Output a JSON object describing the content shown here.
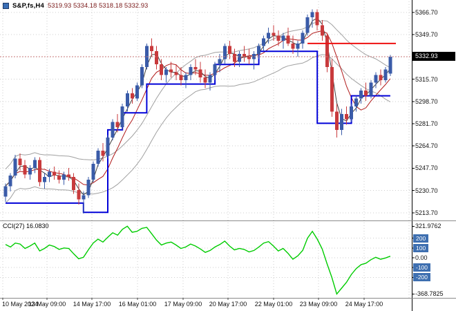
{
  "header": {
    "symbol": "S&P,fs,H4",
    "ohlc": "5319.93 5334.18 5318.18 5332.93"
  },
  "price_axis": {
    "current": "5332.93"
  },
  "colors": {
    "background": "#FFFFFF",
    "grid": "#CDCDCD",
    "bull_candle": "#3A5BA8",
    "bear_candle": "#C83A3C",
    "ma_red": "#B01818",
    "ma_dark": "#404040",
    "envelope": "#A0A0A0",
    "step_line": "#0000D8",
    "resistance_line": "#EE1111",
    "bid_line": "#D08080",
    "cci_line": "#00CC00",
    "level_box": "#3E6FB0",
    "price_tag_bg": "#000000",
    "axis_text": "#111111",
    "icon_blue": "#3A6EB5"
  },
  "chart_data": {
    "type": "candlestick",
    "title": "S&P,fs,H4",
    "timeframe": "H4",
    "ohlc": {
      "open": 5319.93,
      "high": 5334.18,
      "low": 5318.18,
      "close": 5332.93
    },
    "ylim": [
      5208,
      5369
    ],
    "grid_on": true,
    "grid_prices": [
      5366.7,
      5349.7,
      5332.7,
      5315.7,
      5298.7,
      5281.7,
      5264.7,
      5247.7,
      5230.7,
      5213.7
    ],
    "y_ticks": [
      {
        "text": "5366.70",
        "value": 5366.7
      },
      {
        "text": "5349.70",
        "value": 5349.7
      },
      {
        "text": "5315.70",
        "value": 5315.7
      },
      {
        "text": "5298.70",
        "value": 5298.7
      },
      {
        "text": "5281.70",
        "value": 5281.7
      },
      {
        "text": "5264.70",
        "value": 5264.7
      },
      {
        "text": "5247.70",
        "value": 5247.7
      },
      {
        "text": "5230.70",
        "value": 5230.7
      },
      {
        "text": "5213.70",
        "value": 5213.7
      }
    ],
    "x_ticks": [
      "10 May 2024",
      "13 May 09:00",
      "14 May 17:00",
      "16 May 01:00",
      "17 May 09:00",
      "20 May 17:00",
      "22 May 01:00",
      "23 May 09:00",
      "24 May 17:00"
    ],
    "candles": [
      [
        5226,
        5236,
        5222,
        5234
      ],
      [
        5234,
        5244,
        5230,
        5242
      ],
      [
        5242,
        5258,
        5240,
        5255
      ],
      [
        5255,
        5259,
        5246,
        5250
      ],
      [
        5250,
        5254,
        5240,
        5243
      ],
      [
        5243,
        5250,
        5239,
        5248
      ],
      [
        5248,
        5256,
        5244,
        5254
      ],
      [
        5254,
        5256,
        5234,
        5237
      ],
      [
        5237,
        5244,
        5232,
        5241
      ],
      [
        5241,
        5247,
        5237,
        5245
      ],
      [
        5245,
        5249,
        5239,
        5242
      ],
      [
        5242,
        5246,
        5236,
        5239
      ],
      [
        5239,
        5245,
        5235,
        5243
      ],
      [
        5243,
        5248,
        5238,
        5241
      ],
      [
        5241,
        5244,
        5228,
        5231
      ],
      [
        5231,
        5236,
        5220,
        5224
      ],
      [
        5224,
        5230,
        5213,
        5227
      ],
      [
        5227,
        5241,
        5225,
        5239
      ],
      [
        5239,
        5253,
        5237,
        5251
      ],
      [
        5251,
        5263,
        5249,
        5261
      ],
      [
        5261,
        5267,
        5253,
        5257
      ],
      [
        5257,
        5273,
        5255,
        5271
      ],
      [
        5271,
        5285,
        5269,
        5283
      ],
      [
        5283,
        5289,
        5275,
        5279
      ],
      [
        5279,
        5297,
        5277,
        5295
      ],
      [
        5295,
        5307,
        5291,
        5305
      ],
      [
        5305,
        5309,
        5297,
        5301
      ],
      [
        5301,
        5313,
        5299,
        5311
      ],
      [
        5311,
        5327,
        5309,
        5325
      ],
      [
        5325,
        5343,
        5323,
        5341
      ],
      [
        5341,
        5347,
        5333,
        5337
      ],
      [
        5337,
        5341,
        5323,
        5327
      ],
      [
        5327,
        5331,
        5315,
        5319
      ],
      [
        5319,
        5325,
        5313,
        5323
      ],
      [
        5323,
        5329,
        5317,
        5321
      ],
      [
        5321,
        5327,
        5315,
        5319
      ],
      [
        5319,
        5325,
        5311,
        5315
      ],
      [
        5315,
        5321,
        5309,
        5319
      ],
      [
        5319,
        5327,
        5315,
        5325
      ],
      [
        5325,
        5331,
        5319,
        5323
      ],
      [
        5323,
        5329,
        5313,
        5317
      ],
      [
        5317,
        5323,
        5309,
        5313
      ],
      [
        5313,
        5321,
        5307,
        5319
      ],
      [
        5319,
        5329,
        5315,
        5327
      ],
      [
        5327,
        5335,
        5321,
        5331
      ],
      [
        5331,
        5343,
        5327,
        5341
      ],
      [
        5341,
        5345,
        5331,
        5335
      ],
      [
        5335,
        5339,
        5325,
        5329
      ],
      [
        5329,
        5337,
        5325,
        5335
      ],
      [
        5335,
        5341,
        5329,
        5333
      ],
      [
        5333,
        5339,
        5327,
        5331
      ],
      [
        5331,
        5337,
        5323,
        5335
      ],
      [
        5335,
        5343,
        5331,
        5341
      ],
      [
        5341,
        5349,
        5337,
        5347
      ],
      [
        5347,
        5355,
        5343,
        5351
      ],
      [
        5351,
        5357,
        5345,
        5349
      ],
      [
        5349,
        5353,
        5341,
        5345
      ],
      [
        5345,
        5351,
        5339,
        5349
      ],
      [
        5349,
        5355,
        5341,
        5343
      ],
      [
        5343,
        5349,
        5335,
        5339
      ],
      [
        5339,
        5345,
        5333,
        5343
      ],
      [
        5343,
        5353,
        5339,
        5351
      ],
      [
        5351,
        5365,
        5349,
        5363
      ],
      [
        5363,
        5369,
        5355,
        5367
      ],
      [
        5367,
        5369,
        5353,
        5357
      ],
      [
        5357,
        5361,
        5345,
        5349
      ],
      [
        5349,
        5351,
        5321,
        5325
      ],
      [
        5325,
        5331,
        5287,
        5291
      ],
      [
        5291,
        5297,
        5271,
        5277
      ],
      [
        5277,
        5293,
        5273,
        5289
      ],
      [
        5289,
        5295,
        5281,
        5285
      ],
      [
        5285,
        5297,
        5283,
        5295
      ],
      [
        5295,
        5303,
        5291,
        5301
      ],
      [
        5301,
        5309,
        5297,
        5307
      ],
      [
        5307,
        5313,
        5299,
        5303
      ],
      [
        5303,
        5315,
        5301,
        5313
      ],
      [
        5313,
        5321,
        5309,
        5319
      ],
      [
        5319,
        5323,
        5311,
        5315
      ],
      [
        5315,
        5325,
        5313,
        5323
      ],
      [
        5319.93,
        5334.18,
        5318.18,
        5332.93
      ]
    ],
    "overlays": {
      "step_line_points": [
        [
          0,
          5221
        ],
        [
          16,
          5221
        ],
        [
          16,
          5214
        ],
        [
          21,
          5214
        ],
        [
          21,
          5277
        ],
        [
          24,
          5277
        ],
        [
          24,
          5290
        ],
        [
          29,
          5290
        ],
        [
          29,
          5312
        ],
        [
          43,
          5312
        ],
        [
          43,
          5327
        ],
        [
          52,
          5327
        ],
        [
          52,
          5337
        ],
        [
          64,
          5337
        ],
        [
          64,
          5282
        ],
        [
          71,
          5282
        ],
        [
          71,
          5303
        ],
        [
          79,
          5303
        ]
      ],
      "resistance_line": {
        "price": 5343.0,
        "from_index": 62
      },
      "envelope_offset": 13,
      "ma_fast_period": 3,
      "ma_red_period": 7,
      "ma_mid_period": 16
    },
    "indicator": {
      "name": "CCI",
      "period": 27,
      "current": 16.083,
      "label": "CCI(27) 16.0830",
      "max": 321.9762,
      "min": -368.7825,
      "levels": [
        200,
        100,
        0,
        -100,
        -200
      ],
      "y_ticks": [
        {
          "text": "321.9762",
          "value": 321.9762,
          "boxed": false
        },
        {
          "text": "200",
          "value": 200,
          "boxed": true
        },
        {
          "text": "100",
          "value": 100,
          "boxed": true
        },
        {
          "text": "0.00",
          "value": 0,
          "boxed": false
        },
        {
          "text": "-100",
          "value": -100,
          "boxed": true
        },
        {
          "text": "-200",
          "value": -200,
          "boxed": true
        },
        {
          "text": "-368.7825",
          "value": -368.7825,
          "boxed": false
        }
      ],
      "values": [
        135,
        110,
        150,
        140,
        95,
        120,
        150,
        70,
        95,
        130,
        115,
        85,
        100,
        95,
        40,
        -10,
        5,
        80,
        150,
        190,
        160,
        210,
        255,
        230,
        290,
        321.98,
        260,
        270,
        300,
        310,
        245,
        180,
        130,
        150,
        160,
        130,
        95,
        110,
        140,
        120,
        90,
        55,
        75,
        110,
        135,
        170,
        120,
        80,
        95,
        85,
        60,
        75,
        110,
        150,
        165,
        120,
        70,
        95,
        45,
        -15,
        20,
        75,
        200,
        270,
        190,
        90,
        -60,
        -200,
        -368.78,
        -310,
        -250,
        -170,
        -110,
        -70,
        -55,
        -20,
        5,
        -15,
        -2,
        16.08
      ]
    }
  }
}
